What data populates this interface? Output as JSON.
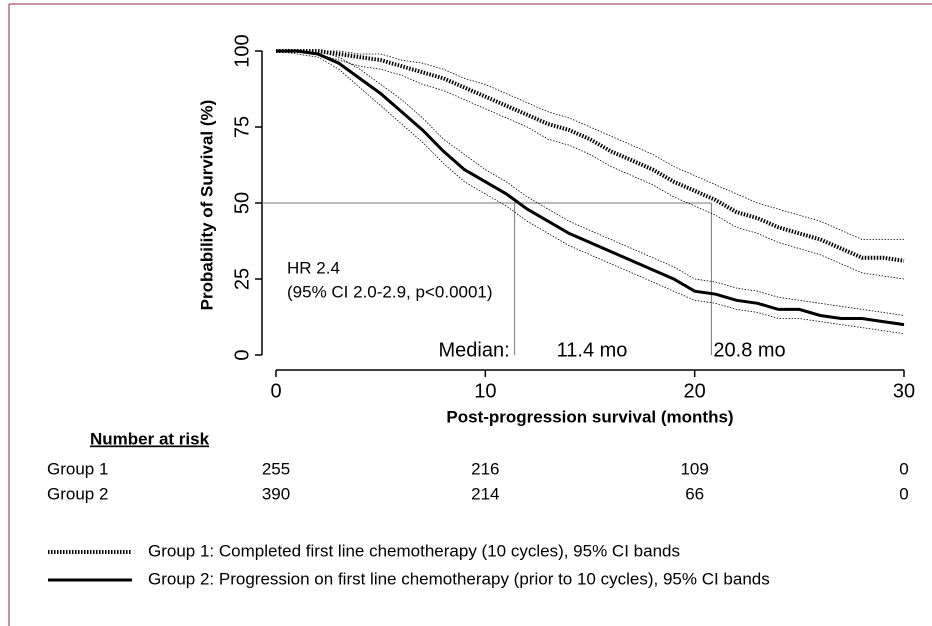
{
  "chart_data": {
    "type": "line",
    "y_label": "Probability of Survival (%)",
    "x_label": "Post-progression survival (months)",
    "xlim": [
      0,
      30
    ],
    "xticks": [
      0,
      10,
      20,
      30
    ],
    "ylim": [
      0,
      100
    ],
    "yticks": [
      0,
      25,
      50,
      75,
      100
    ],
    "x": [
      0,
      1,
      2,
      3,
      4,
      5,
      6,
      7,
      8,
      9,
      10,
      11,
      12,
      13,
      14,
      15,
      16,
      17,
      18,
      19,
      20,
      21,
      22,
      23,
      24,
      25,
      26,
      27,
      28,
      29,
      30
    ],
    "series": [
      {
        "name": "Group 1:  Completed first line chemotherapy (10 cycles), 95% CI bands",
        "color": "#000000",
        "style": "dotted",
        "values": [
          100,
          100,
          100,
          99,
          98,
          97,
          95,
          93,
          91,
          88,
          85,
          82,
          79,
          76,
          74,
          71,
          67,
          64,
          61,
          57,
          54,
          51,
          47,
          45,
          42,
          40,
          38,
          35,
          32,
          32,
          31
        ],
        "upper": [
          100,
          100,
          100,
          100,
          99,
          99,
          97,
          96,
          94,
          91,
          89,
          86,
          83,
          80,
          78,
          75,
          72,
          69,
          66,
          62,
          59,
          56,
          53,
          50,
          48,
          46,
          44,
          41,
          38,
          38,
          38
        ],
        "lower": [
          100,
          100,
          99,
          97,
          95,
          94,
          92,
          89,
          87,
          84,
          81,
          78,
          75,
          71,
          69,
          66,
          62,
          59,
          56,
          52,
          49,
          46,
          42,
          40,
          37,
          35,
          33,
          30,
          27,
          26,
          25
        ]
      },
      {
        "name": "Group 2:  Progression on first line chemotherapy (prior to 10 cycles), 95% CI bands",
        "color": "#000000",
        "style": "solid",
        "values": [
          100,
          100,
          99,
          96,
          91,
          86,
          80,
          74,
          67,
          61,
          57,
          53,
          48,
          44,
          40,
          37,
          34,
          31,
          28,
          25,
          21,
          20,
          18,
          17,
          15,
          15,
          13,
          12,
          12,
          11,
          10
        ],
        "upper": [
          100,
          100,
          100,
          98,
          94,
          89,
          84,
          78,
          71,
          66,
          61,
          57,
          52,
          48,
          44,
          41,
          38,
          35,
          32,
          29,
          25,
          24,
          22,
          21,
          19,
          18,
          17,
          16,
          15,
          14,
          13
        ],
        "lower": [
          100,
          99,
          98,
          94,
          88,
          82,
          76,
          70,
          63,
          57,
          53,
          49,
          44,
          40,
          36,
          33,
          30,
          27,
          24,
          21,
          18,
          17,
          15,
          14,
          12,
          12,
          11,
          10,
          9,
          8,
          7
        ]
      }
    ],
    "median_level": 50,
    "median_title": "Median:",
    "medians": [
      {
        "value": 11.4,
        "label": "11.4 mo"
      },
      {
        "value": 20.8,
        "label": "20.8 mo"
      }
    ],
    "annotations": [
      "HR 2.4",
      "(95% CI 2.0-2.9, p<0.0001)"
    ],
    "risk_table": {
      "title": "Number at risk",
      "rows": [
        {
          "label": "Group 1",
          "values": [
            255,
            216,
            109,
            0
          ]
        },
        {
          "label": "Group 2",
          "values": [
            390,
            214,
            66,
            0
          ]
        }
      ]
    }
  }
}
